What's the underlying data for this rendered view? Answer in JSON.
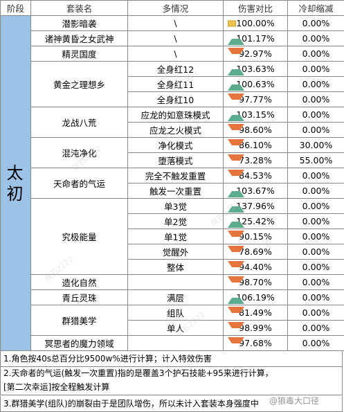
{
  "header": {
    "stage": "阶段",
    "suit": "套装名",
    "cond": "多情况",
    "dmg": "伤害对比",
    "cd": "冷却缩减"
  },
  "stage_label": "太初",
  "rows": [
    {
      "suit": "潜影暗袭",
      "cond": "\\",
      "dmg": "100.00%",
      "trend": "flat",
      "cd": "0.00%"
    },
    {
      "suit": "诸神黄昏之女武神",
      "cond": "\\",
      "dmg": "101.17%",
      "trend": "up",
      "cd": "0.00%"
    },
    {
      "suit": "精灵国度",
      "cond": "\\",
      "dmg": "92.97%",
      "trend": "down",
      "cd": "0.00%"
    },
    {
      "suit": "黄金之理想乡",
      "cond": "全身红12",
      "dmg": "103.63%",
      "trend": "up",
      "cd": "0.00%"
    },
    {
      "suit": "",
      "cond": "全身红11",
      "dmg": "100.63%",
      "trend": "up",
      "cd": "0.00%"
    },
    {
      "suit": "",
      "cond": "全身红10",
      "dmg": "97.77%",
      "trend": "down",
      "cd": "0.00%"
    },
    {
      "suit": "龙战八荒",
      "cond": "应龙的如意珠模式",
      "dmg": "103.15%",
      "trend": "up",
      "cd": "0.00%"
    },
    {
      "suit": "",
      "cond": "应龙之火模式",
      "dmg": "98.60%",
      "trend": "down",
      "cd": "0.00%"
    },
    {
      "suit": "混沌净化",
      "cond": "净化模式",
      "dmg": "86.10%",
      "trend": "down",
      "cd": "30.00%"
    },
    {
      "suit": "",
      "cond": "堕落模式",
      "dmg": "73.28%",
      "trend": "down",
      "cd": "55.00%"
    },
    {
      "suit": "天命者的气运",
      "cond": "完全不触发重置",
      "dmg": "84.53%",
      "trend": "down",
      "cd": "0.00%"
    },
    {
      "suit": "",
      "cond": "触发一次重置",
      "dmg": "103.67%",
      "trend": "up",
      "cd": "0.00%"
    },
    {
      "suit": "究极能量",
      "cond": "单3觉",
      "dmg": "137.96%",
      "trend": "up",
      "cd": "0.00%"
    },
    {
      "suit": "",
      "cond": "单2觉",
      "dmg": "125.42%",
      "trend": "up",
      "cd": "0.00%"
    },
    {
      "suit": "",
      "cond": "单1觉",
      "dmg": "90.15%",
      "trend": "down",
      "cd": "0.00%"
    },
    {
      "suit": "",
      "cond": "觉醒外",
      "dmg": "78.69%",
      "trend": "down",
      "cd": "0.00%"
    },
    {
      "suit": "",
      "cond": "整体",
      "dmg": "94.40%",
      "trend": "down",
      "cd": "0.00%"
    },
    {
      "suit": "造化自然",
      "cond": "",
      "dmg": "98.70%",
      "trend": "down",
      "cd": "0.00%"
    },
    {
      "suit": "青丘灵珠",
      "cond": "满层",
      "dmg": "106.19%",
      "trend": "up",
      "cd": "0.00%"
    },
    {
      "suit": "群猎美学",
      "cond": "组队",
      "dmg": "81.49%",
      "trend": "down",
      "cd": "0.00%"
    },
    {
      "suit": "",
      "cond": "单人",
      "dmg": "98.99%",
      "trend": "down",
      "cd": "0.00%"
    },
    {
      "suit": "冥思者的魔力领域",
      "cond": "",
      "dmg": "97.68%",
      "trend": "down",
      "cd": "0.00%"
    }
  ],
  "notes": [
    "1.角色按40s总百分比9500w%进行计算；计入特效伤害",
    "2.天命者的气运(触发一次重置)指的是覆盖3个护石技能+95来进行计算，",
    "[第二次幸运]按全程触发计算",
    "3.群猎美学(组队)的崩裂由于是团队增伤，所以未计入套装本身强度中"
  ],
  "watermark": "碳石2222",
  "signature": "@狼毒大口径",
  "colors": {
    "up": "#5bab8c",
    "down": "#e6743d",
    "flat": "#f0c24a",
    "stage_bg": "#9cc2e5",
    "sel_bg": "#ddebf7"
  }
}
